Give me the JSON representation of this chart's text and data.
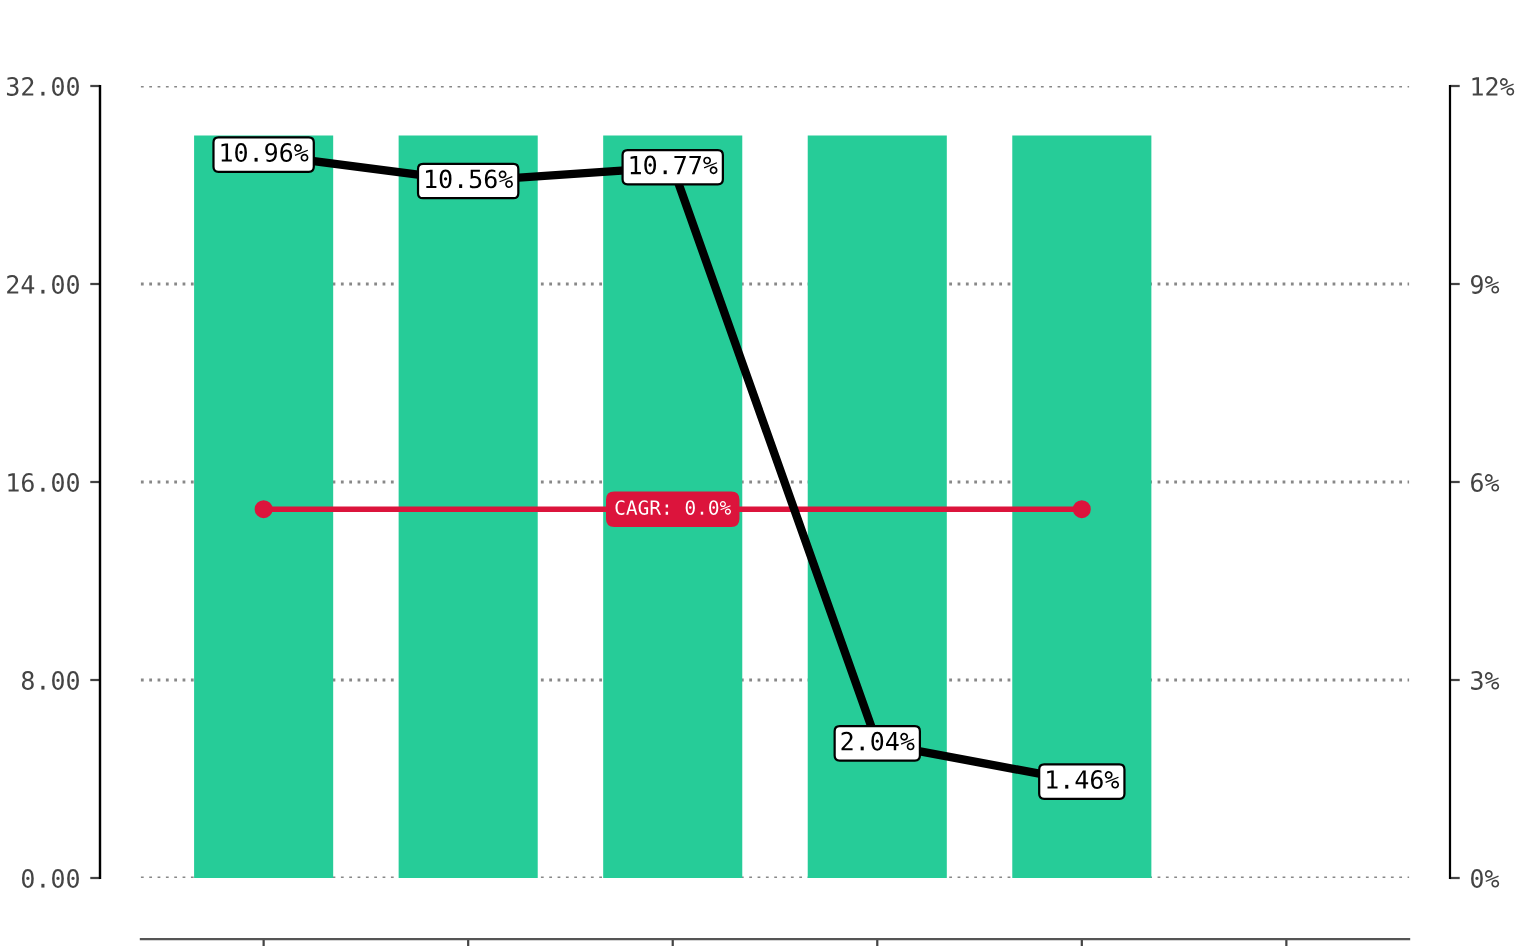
{
  "chart_data": {
    "type": "bar",
    "categories": [
      null,
      null,
      null,
      null,
      null,
      null
    ],
    "series": [
      {
        "color": "#26cc98",
        "values": [
          30,
          30,
          30,
          30,
          30,
          null
        ]
      },
      {
        "type": "line",
        "axis": "y2",
        "color": "#000000",
        "values": [
          10.96,
          10.56,
          10.77,
          2.04,
          1.46,
          null
        ],
        "value_labels": [
          "10.96%",
          "10.56%",
          "10.77%",
          "2.04%",
          "1.46%",
          null
        ]
      },
      {
        "type": "scatter",
        "marker": "circle",
        "color": "#dc143c",
        "values": [
          14.9,
          null,
          null,
          null,
          14.9,
          null
        ]
      }
    ],
    "ref_lines": [
      {
        "axis": "y",
        "value": 14.9,
        "color": "#dc143c"
      }
    ],
    "annotations": [
      {
        "text": "CAGR: 0.0%",
        "y": 14.9
      }
    ],
    "ylim": [
      0,
      32
    ],
    "yticks": [
      {
        "value": 0,
        "label": "0.00"
      },
      {
        "value": 8,
        "label": "8.00"
      },
      {
        "value": 16,
        "label": "16.00"
      },
      {
        "value": 24,
        "label": "24.00"
      },
      {
        "value": 32,
        "label": "32.00"
      }
    ],
    "y2lim": [
      0,
      12
    ],
    "y2ticks": [
      {
        "value": 0,
        "label": "0%"
      },
      {
        "value": 3,
        "label": "3%"
      },
      {
        "value": 6,
        "label": "6%"
      },
      {
        "value": 9,
        "label": "9%"
      },
      {
        "value": 12,
        "label": "12%"
      }
    ],
    "grid": "y",
    "line_style": "solid"
  }
}
